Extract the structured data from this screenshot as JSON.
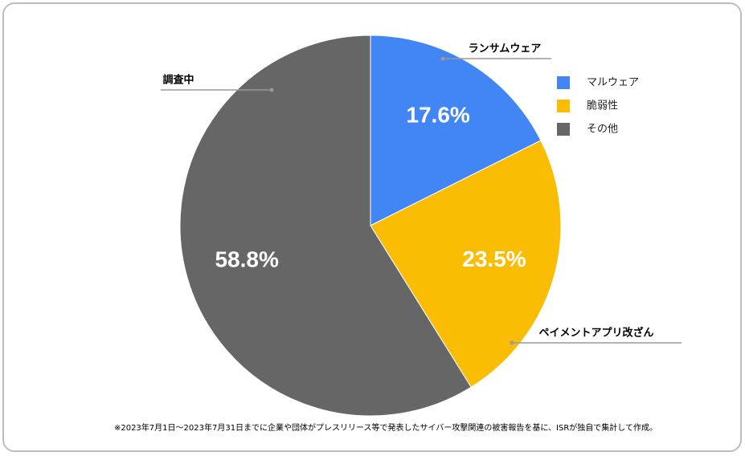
{
  "chart_data": {
    "type": "pie",
    "categories": [
      "マルウェア",
      "脆弱性",
      "その他"
    ],
    "values": [
      17.6,
      23.5,
      58.8
    ],
    "value_labels": [
      "17.6%",
      "23.5%",
      "58.8%"
    ],
    "colors": [
      "#4285f4",
      "#fbbc04",
      "#666666"
    ],
    "legend": "right",
    "annotations": [
      "ランサムウェア",
      "ペイメントアプリ改ざん",
      "調査中"
    ],
    "footnote": "※2023年7月1日～2023年7月31日までに企業や団体がプレスリリース等で発表したサイバー攻撃関連の被害報告を基に、ISRが独自で集計して作成。"
  }
}
